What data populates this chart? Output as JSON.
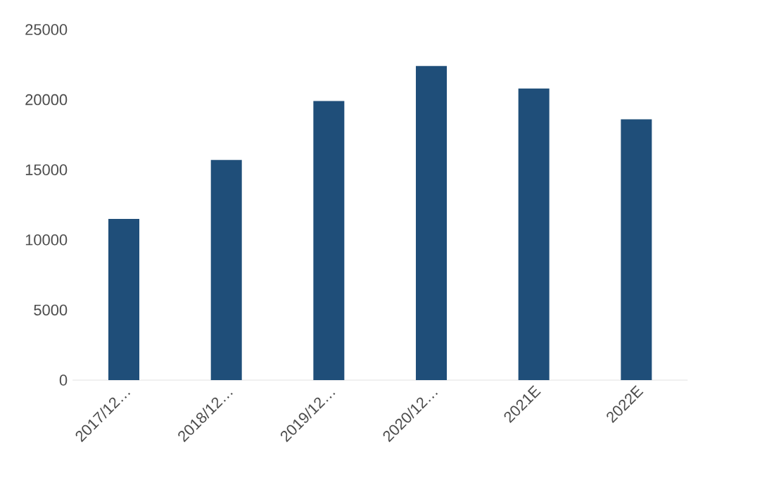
{
  "chart_data": {
    "type": "bar",
    "categories": [
      "2017/12…",
      "2018/12…",
      "2019/12…",
      "2020/12…",
      "2021E",
      "2022E"
    ],
    "values": [
      11500,
      15700,
      19900,
      22400,
      20800,
      18600
    ],
    "color": "#1f4e79",
    "ylim": [
      0,
      25000
    ],
    "yticks": [
      0,
      5000,
      10000,
      15000,
      20000,
      25000
    ]
  }
}
